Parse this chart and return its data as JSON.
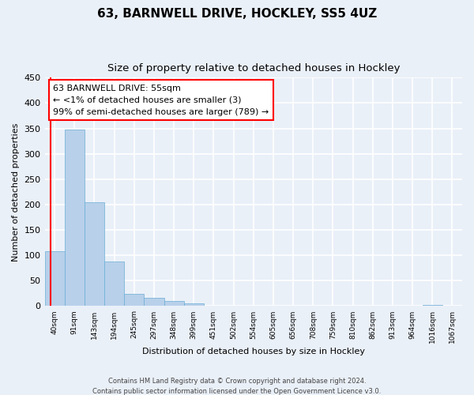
{
  "title": "63, BARNWELL DRIVE, HOCKLEY, SS5 4UZ",
  "subtitle": "Size of property relative to detached houses in Hockley",
  "xlabel": "Distribution of detached houses by size in Hockley",
  "ylabel": "Number of detached properties",
  "bin_labels": [
    "40sqm",
    "91sqm",
    "143sqm",
    "194sqm",
    "245sqm",
    "297sqm",
    "348sqm",
    "399sqm",
    "451sqm",
    "502sqm",
    "554sqm",
    "605sqm",
    "656sqm",
    "708sqm",
    "759sqm",
    "810sqm",
    "862sqm",
    "913sqm",
    "964sqm",
    "1016sqm",
    "1067sqm"
  ],
  "bar_values": [
    108,
    348,
    204,
    88,
    24,
    17,
    10,
    5,
    0,
    0,
    0,
    0,
    0,
    0,
    0,
    0,
    0,
    0,
    0,
    3,
    0
  ],
  "bar_color": "#b8d0ea",
  "bar_edgecolor": "#6aaed6",
  "ylim": [
    0,
    450
  ],
  "yticks": [
    0,
    50,
    100,
    150,
    200,
    250,
    300,
    350,
    400,
    450
  ],
  "annotation_box_text": "63 BARNWELL DRIVE: 55sqm\n← <1% of detached houses are smaller (3)\n99% of semi-detached houses are larger (789) →",
  "footer_line1": "Contains HM Land Registry data © Crown copyright and database right 2024.",
  "footer_line2": "Contains public sector information licensed under the Open Government Licence v3.0.",
  "background_color": "#eaf0f8",
  "grid_color": "#ffffff",
  "title_fontsize": 11,
  "subtitle_fontsize": 9.5
}
